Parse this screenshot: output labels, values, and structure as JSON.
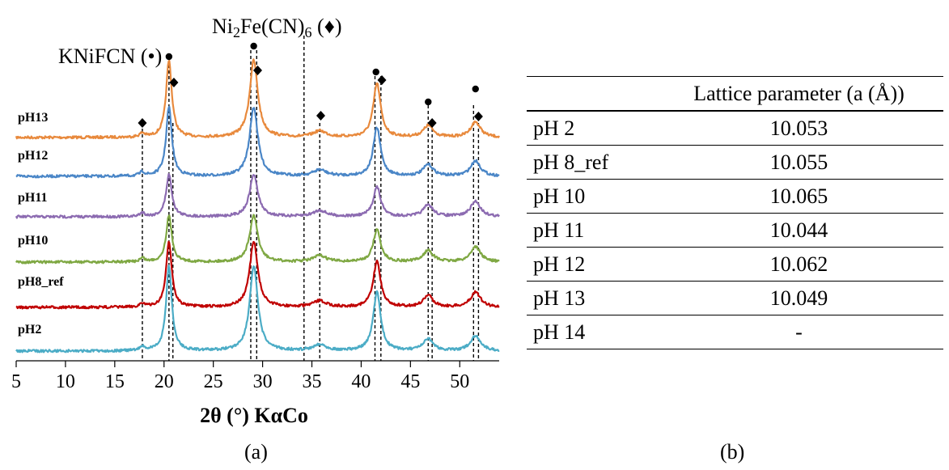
{
  "chart_data": [
    {
      "type": "line",
      "panel_label": "(a)",
      "xlabel": "2θ (°) KαCo",
      "xlim": [
        5,
        54
      ],
      "x_ticks": [
        5,
        10,
        15,
        20,
        25,
        30,
        35,
        40,
        45,
        50
      ],
      "stacked": true,
      "grid": false,
      "phase_labels": [
        {
          "text": "KNiFCN (•)",
          "marker": "circle"
        },
        {
          "text": "Ni₂Fe(CN)₆ (♦)",
          "marker": "diamond"
        }
      ],
      "reference_lines_2theta": [
        17.8,
        20.5,
        20.9,
        28.8,
        29.4,
        34.2,
        35.8,
        41.4,
        42.0,
        46.8,
        47.2,
        51.4,
        51.9
      ],
      "markers": {
        "circle_2theta": [
          20.5,
          29.1,
          41.5,
          46.8,
          51.6
        ],
        "diamond_2theta": [
          17.8,
          21.0,
          29.5,
          35.9,
          42.1,
          47.2,
          51.9
        ]
      },
      "peaks": [
        {
          "center": 17.8,
          "width": 0.3,
          "rel_height": 0.05
        },
        {
          "center": 20.5,
          "width": 0.35,
          "rel_height": 1.0
        },
        {
          "center": 29.1,
          "width": 0.5,
          "rel_height": 1.0
        },
        {
          "center": 35.8,
          "width": 0.8,
          "rel_height": 0.08
        },
        {
          "center": 41.6,
          "width": 0.45,
          "rel_height": 0.7
        },
        {
          "center": 46.8,
          "width": 0.6,
          "rel_height": 0.15
        },
        {
          "center": 51.6,
          "width": 0.6,
          "rel_height": 0.2
        }
      ],
      "series": [
        {
          "name": "pH13",
          "color": "#E8893C",
          "peak_scale": 1.0
        },
        {
          "name": "pH12",
          "color": "#4A86C7",
          "peak_scale": 0.9
        },
        {
          "name": "pH11",
          "color": "#8C6BB1",
          "peak_scale": 0.55
        },
        {
          "name": "pH10",
          "color": "#7FA843",
          "peak_scale": 0.6
        },
        {
          "name": "pH8_ref",
          "color": "#C00000",
          "peak_scale": 0.85
        },
        {
          "name": "pH2",
          "color": "#4BACC6",
          "peak_scale": 1.1
        }
      ]
    },
    {
      "type": "table",
      "panel_label": "(b)",
      "columns": [
        "",
        "Lattice parameter (a (Å))"
      ],
      "rows": [
        [
          "pH 2",
          "10.053"
        ],
        [
          "pH 8_ref",
          "10.055"
        ],
        [
          "pH 10",
          "10.065"
        ],
        [
          "pH 11",
          "10.044"
        ],
        [
          "pH 12",
          "10.062"
        ],
        [
          "pH 13",
          "10.049"
        ],
        [
          "pH 14",
          "-"
        ]
      ]
    }
  ]
}
